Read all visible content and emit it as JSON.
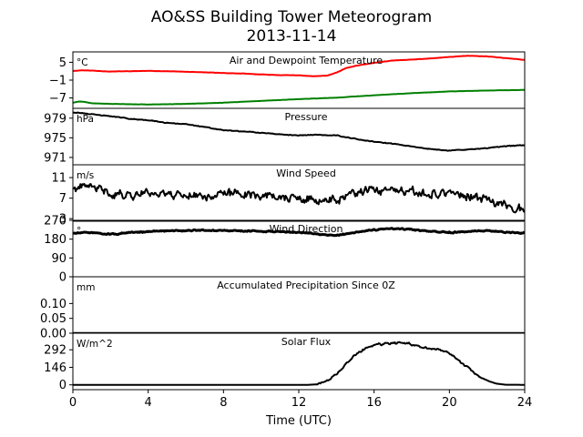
{
  "title_line1": "AO&SS Building Tower Meteorogram",
  "title_line2": "2013-11-14",
  "xlabel": "Time (UTC)",
  "x_ticks": [
    "0",
    "4",
    "8",
    "12",
    "16",
    "20",
    "24"
  ],
  "chart_data": {
    "type": "line",
    "x_unit": "hours UTC",
    "xlim": [
      0,
      24
    ],
    "panels": [
      {
        "title": "Air and Dewpoint Temperature",
        "unit": "°C",
        "ylim": [
          -10.5,
          8.5
        ],
        "yticks": [
          5,
          -1,
          -7
        ],
        "ytick_labels": [
          "5",
          "−1",
          "−7"
        ],
        "series": [
          {
            "color": "#ff0000",
            "lw": 2,
            "noise": 0.08,
            "seed": 11,
            "x": [
              0,
              0.5,
              1,
              2,
              3,
              4,
              5,
              6,
              7,
              8,
              9,
              10,
              11,
              12,
              12.8,
              13.5,
              14,
              14.5,
              15,
              16,
              17,
              18,
              19,
              20,
              20.5,
              21,
              22,
              23,
              24
            ],
            "y": [
              2.1,
              2.3,
              2.2,
              1.9,
              2.0,
              2.1,
              2.0,
              1.8,
              1.6,
              1.4,
              1.2,
              0.9,
              0.7,
              0.6,
              0.3,
              0.5,
              1.5,
              3.0,
              3.8,
              4.8,
              5.6,
              5.9,
              6.3,
              6.8,
              7.0,
              7.2,
              7.0,
              6.4,
              5.8
            ]
          },
          {
            "color": "#008000",
            "lw": 2,
            "noise": 0.05,
            "seed": 21,
            "x": [
              0,
              0.3,
              0.6,
              1,
              2,
              3,
              4,
              5,
              6,
              8,
              10,
              12,
              14,
              16,
              18,
              20,
              22,
              24
            ],
            "y": [
              -8.6,
              -8.2,
              -8.3,
              -8.8,
              -9.0,
              -9.1,
              -9.2,
              -9.1,
              -9.0,
              -8.6,
              -8.0,
              -7.4,
              -6.9,
              -6.1,
              -5.4,
              -4.8,
              -4.5,
              -4.3
            ]
          }
        ]
      },
      {
        "title": "Pressure",
        "unit": "hPa",
        "ylim": [
          969.5,
          981
        ],
        "yticks": [
          979,
          975,
          971
        ],
        "ytick_labels": [
          "979",
          "975",
          "971"
        ],
        "series": [
          {
            "color": "#000000",
            "lw": 2,
            "noise": 0.12,
            "seed": 31,
            "x": [
              0,
              1,
              2,
              3,
              4,
              5,
              6,
              7,
              8,
              9,
              10,
              11,
              12,
              13,
              14,
              15,
              16,
              17,
              18,
              19,
              20,
              21,
              22,
              23,
              24
            ],
            "y": [
              980.2,
              979.8,
              979.4,
              978.9,
              978.6,
              978.0,
              977.8,
              977.2,
              976.5,
              976.3,
              976.0,
              975.7,
              975.5,
              975.6,
              975.5,
              974.8,
              974.2,
              973.8,
              973.2,
              972.7,
              972.4,
              972.6,
              972.9,
              973.3,
              973.5
            ]
          }
        ]
      },
      {
        "title": "Wind Speed",
        "unit": "m/s",
        "ylim": [
          2.5,
          13.5
        ],
        "yticks": [
          11,
          7,
          3
        ],
        "ytick_labels": [
          "11",
          "7",
          "3"
        ],
        "series": [
          {
            "color": "#000000",
            "lw": 2,
            "noise": 1.3,
            "seed": 41,
            "x": [
              0,
              1,
              2,
              3,
              4,
              5,
              6,
              7,
              8,
              9,
              10,
              11,
              12,
              13,
              14,
              15,
              16,
              17,
              18,
              19,
              20,
              21,
              22,
              23,
              24
            ],
            "y": [
              8.8,
              9.2,
              8.0,
              7.6,
              8.2,
              7.9,
              7.7,
              7.4,
              7.8,
              8.0,
              7.6,
              7.2,
              6.8,
              6.3,
              6.8,
              7.8,
              8.6,
              8.4,
              7.9,
              7.8,
              8.2,
              7.2,
              6.6,
              5.8,
              4.8
            ]
          }
        ]
      },
      {
        "title": "Wind Direction",
        "unit": "°",
        "ylim": [
          0,
          270
        ],
        "yticks": [
          270,
          180,
          90,
          0
        ],
        "ytick_labels": [
          "270",
          "180",
          "90",
          "0"
        ],
        "series": [
          {
            "color": "#000000",
            "lw": 3,
            "noise": 4.5,
            "seed": 51,
            "x": [
              0,
              1,
              2,
              3,
              4,
              5,
              6,
              7,
              8,
              9,
              10,
              11,
              12,
              13,
              14,
              15,
              16,
              17,
              18,
              19,
              20,
              21,
              22,
              23,
              24
            ],
            "y": [
              208,
              212,
              203,
              210,
              216,
              220,
              222,
              222,
              221,
              219,
              218,
              216,
              212,
              204,
              198,
              212,
              224,
              230,
              226,
              216,
              212,
              216,
              220,
              214,
              210
            ]
          }
        ]
      },
      {
        "title": "Accumulated Precipitation Since 0Z",
        "unit": "mm",
        "ylim": [
          0,
          0.19
        ],
        "yticks": [
          0.1,
          0.05,
          0.0
        ],
        "ytick_labels": [
          "0.10",
          "0.05",
          "0.00"
        ],
        "series": [
          {
            "color": "#000000",
            "lw": 2.5,
            "noise": 0,
            "seed": 61,
            "x": [
              0,
              24
            ],
            "y": [
              0,
              0
            ]
          }
        ]
      },
      {
        "title": "Solar Flux",
        "unit": "W/m^2",
        "ylim": [
          -40,
          430
        ],
        "yticks": [
          292,
          146,
          0
        ],
        "ytick_labels": [
          "292",
          "146",
          "0"
        ],
        "series": [
          {
            "color": "#000000",
            "lw": 2,
            "noise": 14,
            "seed": 71,
            "noise_x": [
              13.0,
              22.0
            ],
            "x": [
              0,
              12.5,
              13,
              13.5,
              14,
              14.5,
              15,
              15.5,
              16,
              16.5,
              17,
              17.5,
              18,
              18.5,
              19,
              19.5,
              20,
              20.5,
              21,
              21.5,
              22,
              22.5,
              23,
              24
            ],
            "y": [
              0,
              0,
              5,
              30,
              90,
              170,
              250,
              300,
              330,
              340,
              345,
              350,
              335,
              320,
              300,
              290,
              270,
              200,
              140,
              80,
              35,
              10,
              1,
              0
            ]
          }
        ]
      }
    ]
  }
}
